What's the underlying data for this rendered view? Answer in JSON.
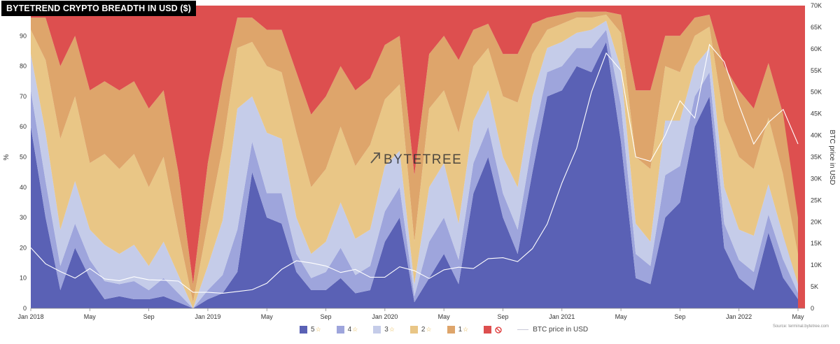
{
  "title": "BYTETREND CRYPTO BREADTH IN USD ($)",
  "watermark": "BYTETREE",
  "source": "Source: terminal.bytetree.com",
  "colors": {
    "star5": "#5a61b5",
    "star4": "#9ea5dc",
    "star3": "#c5cce9",
    "star2": "#e9c686",
    "star1": "#dea56b",
    "star0": "#dd4f4f",
    "btc_line": "#ffffff"
  },
  "legend": [
    {
      "key": "star5",
      "label": "5",
      "icon": "star-icon"
    },
    {
      "key": "star4",
      "label": "4",
      "icon": "star-icon"
    },
    {
      "key": "star3",
      "label": "3",
      "icon": "star-icon"
    },
    {
      "key": "star2",
      "label": "2",
      "icon": "star-icon"
    },
    {
      "key": "star1",
      "label": "1",
      "icon": "star-icon"
    },
    {
      "key": "star0",
      "label": "",
      "icon": "no-entry-icon"
    },
    {
      "key": "btc_line",
      "label": "BTC price in USD",
      "icon": "line-icon"
    }
  ],
  "chart_data": {
    "type": "area",
    "title": "BYTETREND CRYPTO BREADTH IN USD ($)",
    "ylabel": "%",
    "y2label": "BTC price in USD",
    "ylim": [
      0,
      100
    ],
    "y2lim": [
      0,
      70000
    ],
    "yticks": [
      "0",
      "10",
      "20",
      "30",
      "40",
      "50",
      "60",
      "70",
      "80",
      "90"
    ],
    "y2ticks": [
      "0",
      "5K",
      "10K",
      "15K",
      "20K",
      "25K",
      "30K",
      "35K",
      "40K",
      "45K",
      "50K",
      "55K",
      "60K",
      "65K",
      "70K"
    ],
    "xticks": [
      "Jan 2018",
      "May",
      "Sep",
      "Jan 2019",
      "May",
      "Sep",
      "Jan 2020",
      "May",
      "Sep",
      "Jan 2021",
      "May",
      "Sep",
      "Jan 2022",
      "May"
    ],
    "x": [
      "2018-01",
      "2018-02",
      "2018-03",
      "2018-04",
      "2018-05",
      "2018-06",
      "2018-07",
      "2018-08",
      "2018-09",
      "2018-10",
      "2018-11",
      "2018-12",
      "2019-01",
      "2019-02",
      "2019-03",
      "2019-04",
      "2019-05",
      "2019-06",
      "2019-07",
      "2019-08",
      "2019-09",
      "2019-10",
      "2019-11",
      "2019-12",
      "2020-01",
      "2020-02",
      "2020-03",
      "2020-04",
      "2020-05",
      "2020-06",
      "2020-07",
      "2020-08",
      "2020-09",
      "2020-10",
      "2020-11",
      "2020-12",
      "2021-01",
      "2021-02",
      "2021-03",
      "2021-04",
      "2021-05",
      "2021-06",
      "2021-07",
      "2021-08",
      "2021-09",
      "2021-10",
      "2021-11",
      "2021-12",
      "2022-01",
      "2022-02",
      "2022-03",
      "2022-04",
      "2022-05"
    ],
    "series": [
      {
        "name": "5",
        "key": "star5",
        "values": [
          60,
          30,
          6,
          20,
          10,
          3,
          4,
          3,
          3,
          4,
          2,
          0,
          3,
          5,
          12,
          45,
          30,
          28,
          12,
          6,
          6,
          10,
          5,
          6,
          22,
          30,
          2,
          10,
          18,
          8,
          38,
          50,
          30,
          18,
          45,
          70,
          72,
          80,
          78,
          88,
          55,
          10,
          8,
          30,
          35,
          60,
          70,
          20,
          10,
          6,
          25,
          10,
          3
        ]
      },
      {
        "name": "4",
        "key": "star4",
        "values": [
          12,
          12,
          8,
          8,
          6,
          6,
          4,
          6,
          3,
          6,
          3,
          0,
          3,
          6,
          14,
          10,
          8,
          10,
          6,
          4,
          6,
          10,
          6,
          8,
          10,
          10,
          2,
          12,
          12,
          8,
          10,
          10,
          8,
          8,
          10,
          8,
          8,
          6,
          8,
          4,
          12,
          8,
          6,
          14,
          12,
          10,
          8,
          8,
          6,
          6,
          6,
          6,
          2
        ]
      },
      {
        "name": "3",
        "key": "star3",
        "values": [
          12,
          16,
          12,
          14,
          10,
          12,
          10,
          12,
          8,
          12,
          6,
          0,
          8,
          18,
          40,
          15,
          20,
          18,
          12,
          8,
          10,
          15,
          12,
          12,
          15,
          12,
          4,
          18,
          18,
          12,
          14,
          12,
          12,
          14,
          15,
          8,
          8,
          5,
          6,
          3,
          12,
          10,
          8,
          18,
          15,
          10,
          8,
          12,
          10,
          12,
          10,
          8,
          3
        ]
      },
      {
        "name": "2",
        "key": "star2",
        "values": [
          8,
          24,
          30,
          28,
          22,
          30,
          28,
          30,
          26,
          28,
          14,
          2,
          14,
          24,
          20,
          18,
          22,
          22,
          28,
          22,
          24,
          25,
          24,
          28,
          22,
          22,
          14,
          26,
          24,
          30,
          18,
          14,
          20,
          28,
          14,
          6,
          6,
          5,
          4,
          2,
          12,
          22,
          24,
          18,
          16,
          10,
          7,
          22,
          24,
          22,
          22,
          20,
          10
        ]
      },
      {
        "name": "1",
        "key": "star1",
        "values": [
          4,
          14,
          24,
          20,
          24,
          24,
          26,
          24,
          26,
          22,
          20,
          6,
          20,
          22,
          10,
          8,
          12,
          14,
          20,
          24,
          24,
          20,
          25,
          22,
          18,
          16,
          22,
          18,
          18,
          24,
          12,
          8,
          14,
          16,
          10,
          4,
          3,
          2,
          2,
          1,
          6,
          22,
          26,
          10,
          12,
          6,
          4,
          18,
          22,
          20,
          18,
          20,
          12
        ]
      },
      {
        "name": "",
        "key": "star0",
        "values": [
          4,
          4,
          20,
          10,
          28,
          25,
          28,
          25,
          34,
          28,
          55,
          92,
          52,
          25,
          4,
          4,
          8,
          8,
          22,
          36,
          30,
          20,
          28,
          24,
          13,
          10,
          56,
          16,
          10,
          18,
          8,
          6,
          16,
          16,
          6,
          4,
          3,
          2,
          2,
          2,
          3,
          28,
          28,
          10,
          10,
          4,
          3,
          20,
          28,
          34,
          19,
          36,
          70
        ]
      }
    ],
    "btc_price_usd": [
      14000,
      10300,
      8500,
      7000,
      9200,
      6800,
      6400,
      7300,
      6600,
      6500,
      6300,
      3700,
      3700,
      3500,
      3900,
      4300,
      5800,
      9000,
      11000,
      10500,
      9800,
      8300,
      9000,
      7200,
      7200,
      9600,
      8700,
      6900,
      8900,
      9500,
      9200,
      11500,
      11700,
      10800,
      13800,
      19500,
      29000,
      37000,
      50000,
      59000,
      55000,
      35000,
      34000,
      40000,
      48000,
      44000,
      61000,
      57000,
      47000,
      38000,
      43000,
      46000,
      38000
    ]
  }
}
